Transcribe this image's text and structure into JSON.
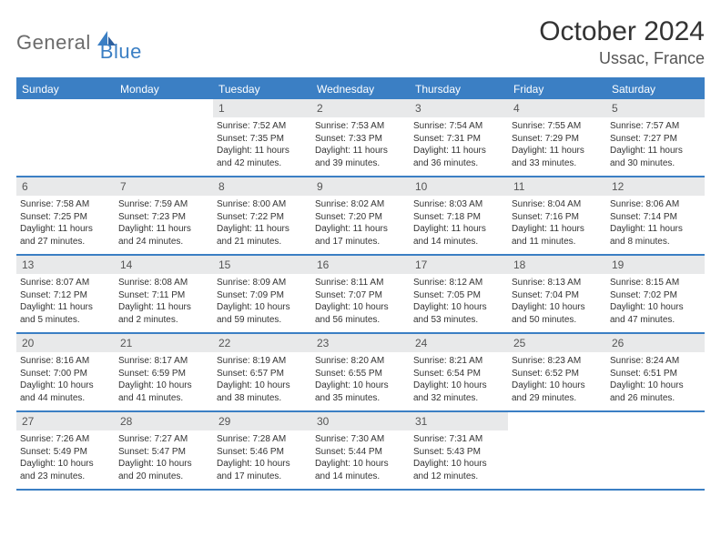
{
  "brand": {
    "part1": "General",
    "part2": "Blue"
  },
  "title": "October 2024",
  "location": "Ussac, France",
  "colors": {
    "accent": "#3b7fc4",
    "header_text": "#ffffff",
    "daynum_bg": "#e8e9ea",
    "text": "#333333",
    "logo_gray": "#6b6b6b"
  },
  "day_names": [
    "Sunday",
    "Monday",
    "Tuesday",
    "Wednesday",
    "Thursday",
    "Friday",
    "Saturday"
  ],
  "weeks": [
    [
      null,
      null,
      {
        "n": "1",
        "sunrise": "Sunrise: 7:52 AM",
        "sunset": "Sunset: 7:35 PM",
        "day1": "Daylight: 11 hours",
        "day2": "and 42 minutes."
      },
      {
        "n": "2",
        "sunrise": "Sunrise: 7:53 AM",
        "sunset": "Sunset: 7:33 PM",
        "day1": "Daylight: 11 hours",
        "day2": "and 39 minutes."
      },
      {
        "n": "3",
        "sunrise": "Sunrise: 7:54 AM",
        "sunset": "Sunset: 7:31 PM",
        "day1": "Daylight: 11 hours",
        "day2": "and 36 minutes."
      },
      {
        "n": "4",
        "sunrise": "Sunrise: 7:55 AM",
        "sunset": "Sunset: 7:29 PM",
        "day1": "Daylight: 11 hours",
        "day2": "and 33 minutes."
      },
      {
        "n": "5",
        "sunrise": "Sunrise: 7:57 AM",
        "sunset": "Sunset: 7:27 PM",
        "day1": "Daylight: 11 hours",
        "day2": "and 30 minutes."
      }
    ],
    [
      {
        "n": "6",
        "sunrise": "Sunrise: 7:58 AM",
        "sunset": "Sunset: 7:25 PM",
        "day1": "Daylight: 11 hours",
        "day2": "and 27 minutes."
      },
      {
        "n": "7",
        "sunrise": "Sunrise: 7:59 AM",
        "sunset": "Sunset: 7:23 PM",
        "day1": "Daylight: 11 hours",
        "day2": "and 24 minutes."
      },
      {
        "n": "8",
        "sunrise": "Sunrise: 8:00 AM",
        "sunset": "Sunset: 7:22 PM",
        "day1": "Daylight: 11 hours",
        "day2": "and 21 minutes."
      },
      {
        "n": "9",
        "sunrise": "Sunrise: 8:02 AM",
        "sunset": "Sunset: 7:20 PM",
        "day1": "Daylight: 11 hours",
        "day2": "and 17 minutes."
      },
      {
        "n": "10",
        "sunrise": "Sunrise: 8:03 AM",
        "sunset": "Sunset: 7:18 PM",
        "day1": "Daylight: 11 hours",
        "day2": "and 14 minutes."
      },
      {
        "n": "11",
        "sunrise": "Sunrise: 8:04 AM",
        "sunset": "Sunset: 7:16 PM",
        "day1": "Daylight: 11 hours",
        "day2": "and 11 minutes."
      },
      {
        "n": "12",
        "sunrise": "Sunrise: 8:06 AM",
        "sunset": "Sunset: 7:14 PM",
        "day1": "Daylight: 11 hours",
        "day2": "and 8 minutes."
      }
    ],
    [
      {
        "n": "13",
        "sunrise": "Sunrise: 8:07 AM",
        "sunset": "Sunset: 7:12 PM",
        "day1": "Daylight: 11 hours",
        "day2": "and 5 minutes."
      },
      {
        "n": "14",
        "sunrise": "Sunrise: 8:08 AM",
        "sunset": "Sunset: 7:11 PM",
        "day1": "Daylight: 11 hours",
        "day2": "and 2 minutes."
      },
      {
        "n": "15",
        "sunrise": "Sunrise: 8:09 AM",
        "sunset": "Sunset: 7:09 PM",
        "day1": "Daylight: 10 hours",
        "day2": "and 59 minutes."
      },
      {
        "n": "16",
        "sunrise": "Sunrise: 8:11 AM",
        "sunset": "Sunset: 7:07 PM",
        "day1": "Daylight: 10 hours",
        "day2": "and 56 minutes."
      },
      {
        "n": "17",
        "sunrise": "Sunrise: 8:12 AM",
        "sunset": "Sunset: 7:05 PM",
        "day1": "Daylight: 10 hours",
        "day2": "and 53 minutes."
      },
      {
        "n": "18",
        "sunrise": "Sunrise: 8:13 AM",
        "sunset": "Sunset: 7:04 PM",
        "day1": "Daylight: 10 hours",
        "day2": "and 50 minutes."
      },
      {
        "n": "19",
        "sunrise": "Sunrise: 8:15 AM",
        "sunset": "Sunset: 7:02 PM",
        "day1": "Daylight: 10 hours",
        "day2": "and 47 minutes."
      }
    ],
    [
      {
        "n": "20",
        "sunrise": "Sunrise: 8:16 AM",
        "sunset": "Sunset: 7:00 PM",
        "day1": "Daylight: 10 hours",
        "day2": "and 44 minutes."
      },
      {
        "n": "21",
        "sunrise": "Sunrise: 8:17 AM",
        "sunset": "Sunset: 6:59 PM",
        "day1": "Daylight: 10 hours",
        "day2": "and 41 minutes."
      },
      {
        "n": "22",
        "sunrise": "Sunrise: 8:19 AM",
        "sunset": "Sunset: 6:57 PM",
        "day1": "Daylight: 10 hours",
        "day2": "and 38 minutes."
      },
      {
        "n": "23",
        "sunrise": "Sunrise: 8:20 AM",
        "sunset": "Sunset: 6:55 PM",
        "day1": "Daylight: 10 hours",
        "day2": "and 35 minutes."
      },
      {
        "n": "24",
        "sunrise": "Sunrise: 8:21 AM",
        "sunset": "Sunset: 6:54 PM",
        "day1": "Daylight: 10 hours",
        "day2": "and 32 minutes."
      },
      {
        "n": "25",
        "sunrise": "Sunrise: 8:23 AM",
        "sunset": "Sunset: 6:52 PM",
        "day1": "Daylight: 10 hours",
        "day2": "and 29 minutes."
      },
      {
        "n": "26",
        "sunrise": "Sunrise: 8:24 AM",
        "sunset": "Sunset: 6:51 PM",
        "day1": "Daylight: 10 hours",
        "day2": "and 26 minutes."
      }
    ],
    [
      {
        "n": "27",
        "sunrise": "Sunrise: 7:26 AM",
        "sunset": "Sunset: 5:49 PM",
        "day1": "Daylight: 10 hours",
        "day2": "and 23 minutes."
      },
      {
        "n": "28",
        "sunrise": "Sunrise: 7:27 AM",
        "sunset": "Sunset: 5:47 PM",
        "day1": "Daylight: 10 hours",
        "day2": "and 20 minutes."
      },
      {
        "n": "29",
        "sunrise": "Sunrise: 7:28 AM",
        "sunset": "Sunset: 5:46 PM",
        "day1": "Daylight: 10 hours",
        "day2": "and 17 minutes."
      },
      {
        "n": "30",
        "sunrise": "Sunrise: 7:30 AM",
        "sunset": "Sunset: 5:44 PM",
        "day1": "Daylight: 10 hours",
        "day2": "and 14 minutes."
      },
      {
        "n": "31",
        "sunrise": "Sunrise: 7:31 AM",
        "sunset": "Sunset: 5:43 PM",
        "day1": "Daylight: 10 hours",
        "day2": "and 12 minutes."
      },
      null,
      null
    ]
  ]
}
